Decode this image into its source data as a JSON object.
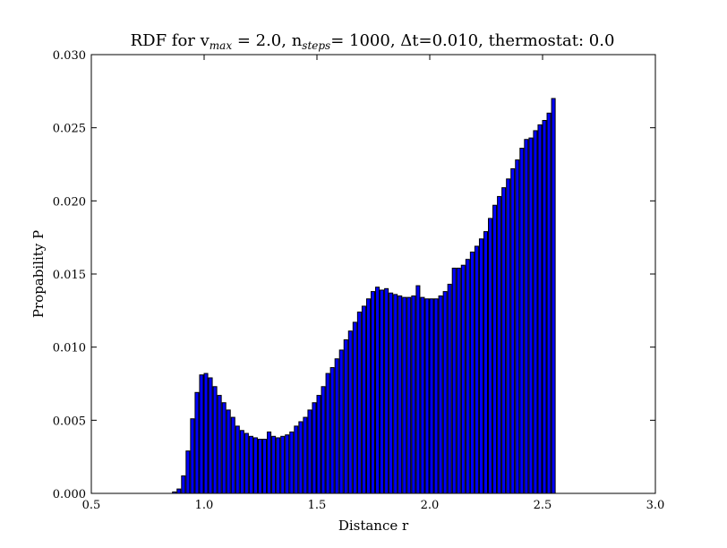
{
  "chart_data": {
    "type": "bar",
    "title": {
      "prefix": "RDF for v",
      "vmax_sub": "max",
      "vmax_val": " = 2.0, n",
      "nsteps_sub": "steps",
      "rest": "= 1000, Δt=0.010, thermostat: 0.0"
    },
    "xlabel": "Distance r",
    "ylabel": "Propability P",
    "xlim": [
      0.5,
      3.0
    ],
    "ylim": [
      0.0,
      0.03
    ],
    "xticks": [
      "0.5",
      "1.0",
      "1.5",
      "2.0",
      "2.5",
      "3.0"
    ],
    "xtick_values": [
      0.5,
      1.0,
      1.5,
      2.0,
      2.5,
      3.0
    ],
    "yticks": [
      "0.000",
      "0.005",
      "0.010",
      "0.015",
      "0.020",
      "0.025",
      "0.030"
    ],
    "ytick_values": [
      0.0,
      0.005,
      0.01,
      0.015,
      0.02,
      0.025,
      0.03
    ],
    "bin_start": 0.5,
    "bin_width": 0.02,
    "bar_width_fraction": 0.8,
    "bar_color": "#0000ff",
    "edge_color": "#000000",
    "grid": false,
    "values": [
      0.0,
      0.0,
      0.0,
      0.0,
      0.0,
      0.0,
      0.0,
      0.0,
      0.0,
      0.0,
      0.0,
      0.0,
      0.0,
      0.0,
      0.0,
      0.0,
      0.0,
      0.0,
      0.0001,
      0.0003,
      0.0012,
      0.0029,
      0.0051,
      0.0069,
      0.0081,
      0.0082,
      0.0079,
      0.0073,
      0.0067,
      0.0062,
      0.0057,
      0.0052,
      0.0046,
      0.0043,
      0.0041,
      0.0039,
      0.0038,
      0.0037,
      0.0037,
      0.0042,
      0.0039,
      0.0038,
      0.0039,
      0.004,
      0.0042,
      0.0046,
      0.0049,
      0.0052,
      0.0057,
      0.0062,
      0.0067,
      0.0073,
      0.0082,
      0.0086,
      0.0092,
      0.0098,
      0.0105,
      0.0111,
      0.0117,
      0.0124,
      0.0128,
      0.0133,
      0.0138,
      0.0141,
      0.0139,
      0.014,
      0.0137,
      0.0136,
      0.0135,
      0.0134,
      0.0134,
      0.0135,
      0.0142,
      0.0134,
      0.0133,
      0.0133,
      0.0133,
      0.0135,
      0.0138,
      0.0143,
      0.0154,
      0.0154,
      0.0156,
      0.016,
      0.0165,
      0.0169,
      0.0174,
      0.0179,
      0.0188,
      0.0197,
      0.0203,
      0.0209,
      0.0215,
      0.0222,
      0.0228,
      0.0236,
      0.0242,
      0.0243,
      0.0248,
      0.0252,
      0.0255,
      0.026,
      0.027
    ]
  }
}
